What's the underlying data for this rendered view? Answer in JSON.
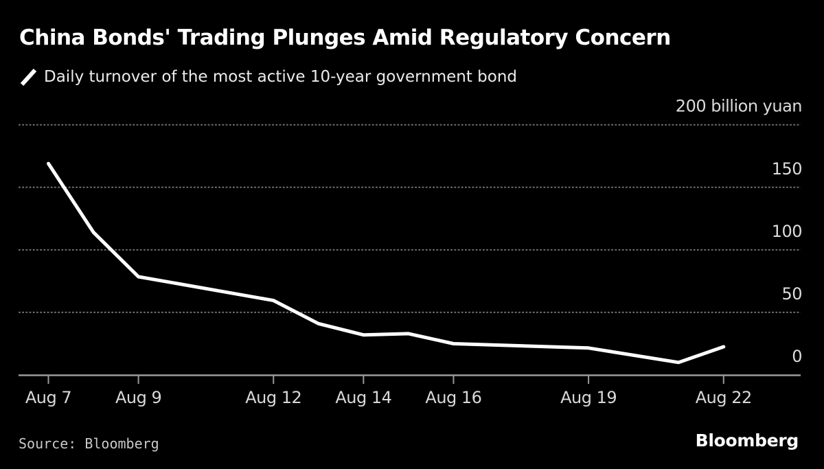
{
  "header": {
    "title": "China Bonds' Trading Plunges Amid Regulatory Concern",
    "legend_label": "Daily turnover of the most active 10-year government bond"
  },
  "footer": {
    "source": "Source: Bloomberg",
    "logo": "Bloomberg"
  },
  "colors": {
    "background": "#000000",
    "series_line": "#ffffff",
    "grid_line": "#6f6f6f",
    "axis_line": "#9a9a9a",
    "tick_label": "#d9d9d9"
  },
  "chart_data": {
    "type": "line",
    "title": "China Bonds' Trading Plunges Amid Regulatory Concern",
    "subtitle": "Daily turnover of the most active 10-year government bond",
    "unit": "billion yuan",
    "x_axis": "Date (August)",
    "points": [
      {
        "label": "Aug 7",
        "day": 7,
        "value": 169
      },
      {
        "label": "Aug 8",
        "day": 8,
        "value": 114
      },
      {
        "label": "Aug 9",
        "day": 9,
        "value": 78.5
      },
      {
        "label": "Aug 12",
        "day": 12,
        "value": 59.5
      },
      {
        "label": "Aug 13",
        "day": 13,
        "value": 41
      },
      {
        "label": "Aug 14",
        "day": 14,
        "value": 32
      },
      {
        "label": "Aug 15",
        "day": 15,
        "value": 33
      },
      {
        "label": "Aug 16",
        "day": 16,
        "value": 25
      },
      {
        "label": "Aug 19",
        "day": 19,
        "value": 21.5
      },
      {
        "label": "Aug 21",
        "day": 21,
        "value": 10
      },
      {
        "label": "Aug 22",
        "day": 22,
        "value": 22.5
      }
    ],
    "x_ticks": [
      {
        "day": 7,
        "label": "Aug 7"
      },
      {
        "day": 9,
        "label": "Aug 9"
      },
      {
        "day": 12,
        "label": "Aug 12"
      },
      {
        "day": 14,
        "label": "Aug 14"
      },
      {
        "day": 16,
        "label": "Aug 16"
      },
      {
        "day": 19,
        "label": "Aug 19"
      },
      {
        "day": 22,
        "label": "Aug 22"
      }
    ],
    "y_ticks": [
      {
        "value": 0,
        "label": "0"
      },
      {
        "value": 50,
        "label": "50"
      },
      {
        "value": 100,
        "label": "100"
      },
      {
        "value": 150,
        "label": "150"
      },
      {
        "value": 200,
        "label": "200 billion yuan"
      }
    ],
    "ylim": [
      0,
      200
    ],
    "xlim_days": [
      7,
      22
    ],
    "grid": "horizontal-dotted",
    "legend_position": "top-left",
    "y_labels_position": "right"
  }
}
